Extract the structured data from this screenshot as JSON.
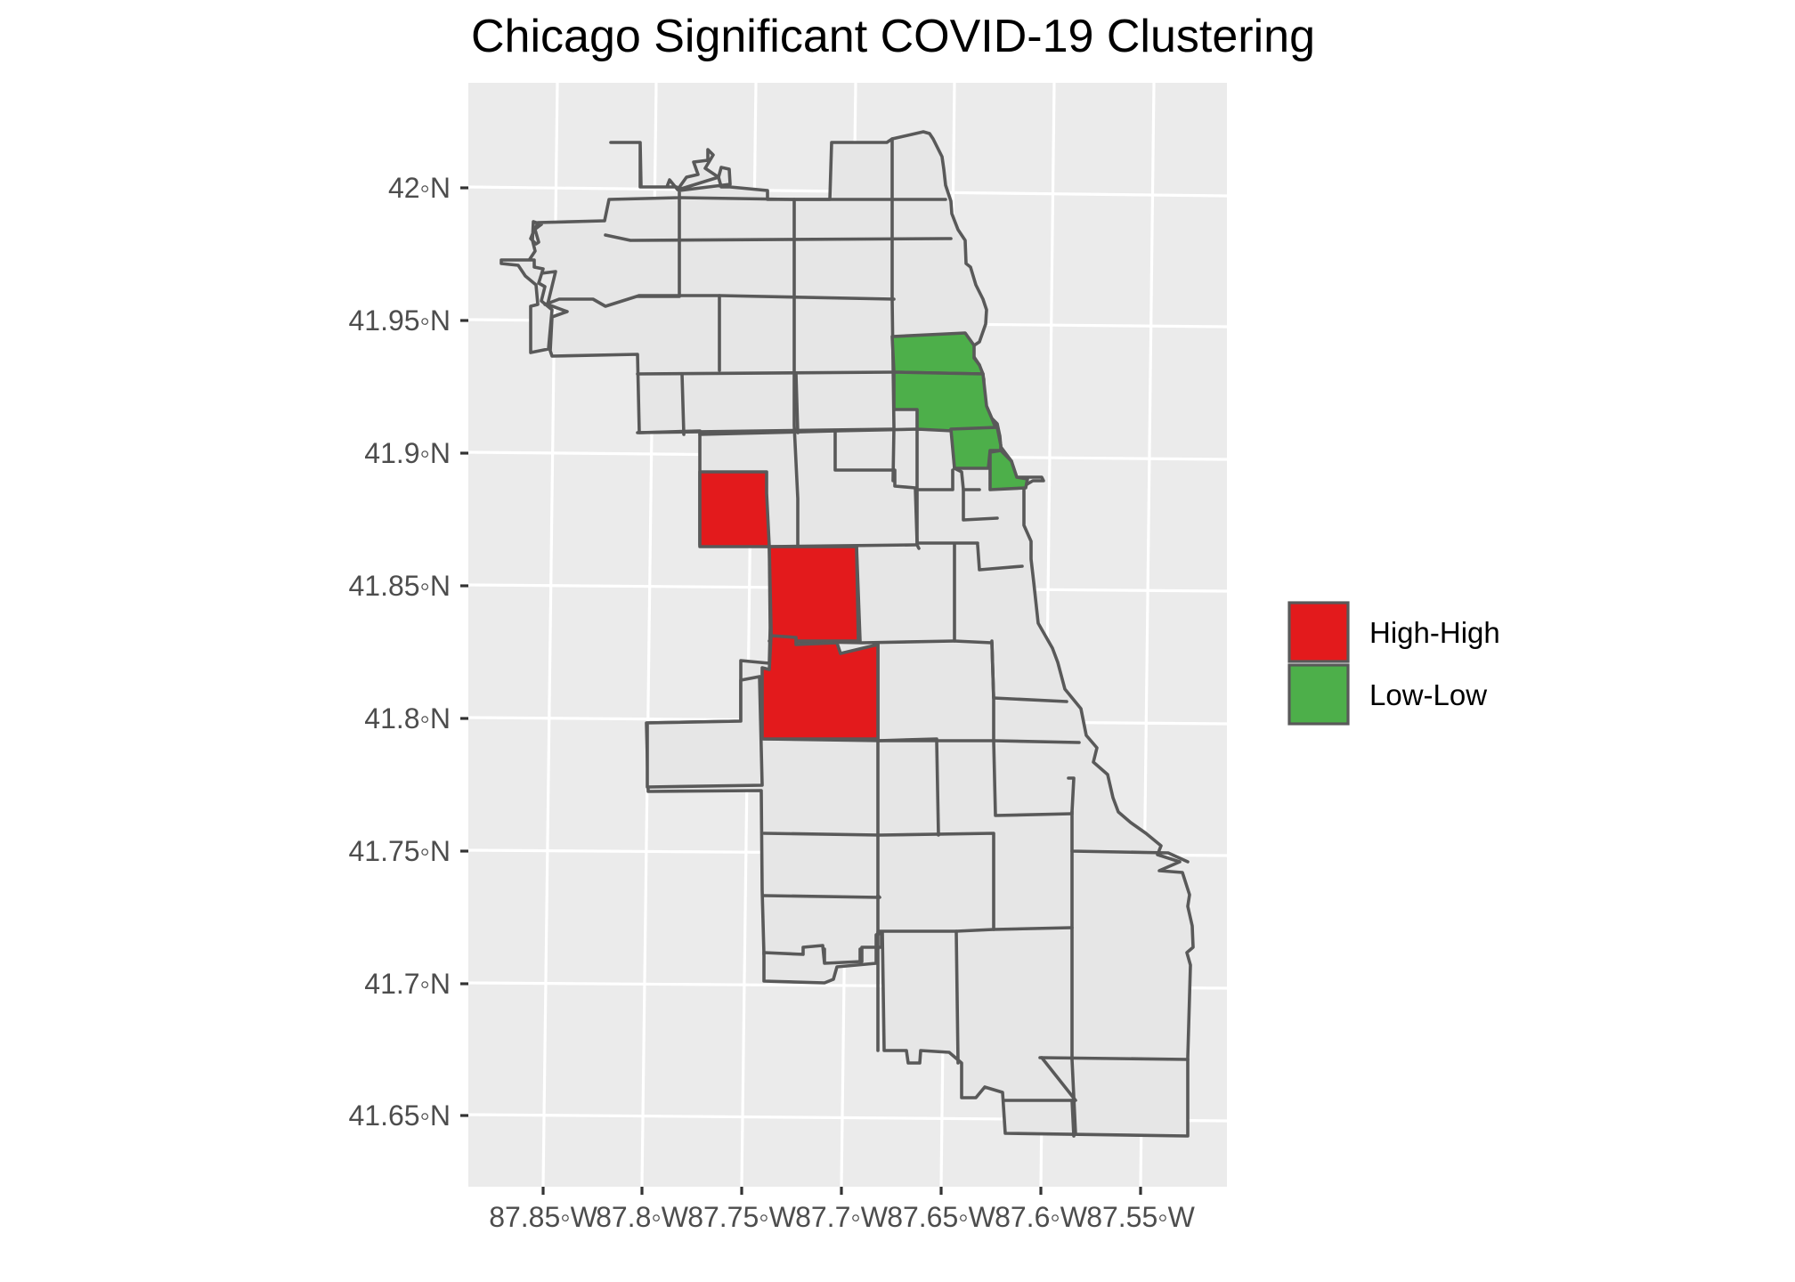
{
  "map": {
    "title": "Chicago Significant COVID-19 Clustering",
    "lat_ticks": [
      "42◦N",
      "41.95◦N",
      "41.9◦N",
      "41.85◦N",
      "41.8◦N",
      "41.75◦N",
      "41.7◦N",
      "41.65◦N"
    ],
    "lon_ticks": [
      "87.85◦W",
      "87.8◦W",
      "87.75◦W",
      "87.7◦W",
      "87.65◦W",
      "87.6◦W",
      "87.55◦W"
    ],
    "legend": [
      {
        "label": "High-High",
        "color": "#e31a1c"
      },
      {
        "label": "Low-Low",
        "color": "#4daf4a"
      }
    ],
    "colors": {
      "panel_background": "#ebebeb",
      "area_fill": "#e6e6e6",
      "boundary": "#595959"
    }
  }
}
